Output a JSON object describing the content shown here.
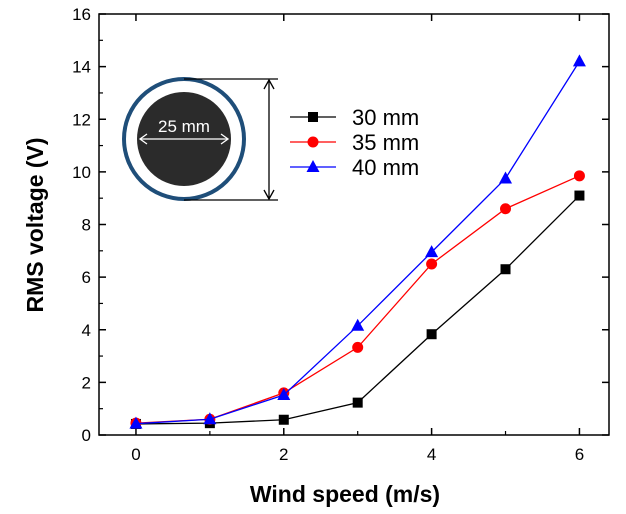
{
  "chart_data": {
    "type": "line",
    "title": "",
    "xlabel": "Wind speed (m/s)",
    "ylabel": "RMS voltage (V)",
    "xlim": [
      -0.5,
      6.4
    ],
    "ylim": [
      0,
      16
    ],
    "x_ticks": [
      0,
      2,
      4,
      6
    ],
    "y_ticks": [
      0,
      2,
      4,
      6,
      8,
      10,
      12,
      14,
      16
    ],
    "x": [
      0,
      1,
      2,
      3,
      4,
      5,
      6
    ],
    "series": [
      {
        "name": "30 mm",
        "color": "#000000",
        "marker": "square",
        "values": [
          0.42,
          0.45,
          0.58,
          1.23,
          3.83,
          6.3,
          9.1
        ]
      },
      {
        "name": "35 mm",
        "color": "#ff0000",
        "marker": "circle",
        "values": [
          0.45,
          0.6,
          1.6,
          3.33,
          6.5,
          8.6,
          9.85
        ]
      },
      {
        "name": "40 mm",
        "color": "#0000ff",
        "marker": "triangle",
        "values": [
          0.43,
          0.6,
          1.52,
          4.15,
          6.95,
          9.75,
          14.2
        ]
      }
    ],
    "legend_position": "top-center",
    "grid": false
  },
  "inset": {
    "label": "25 mm",
    "outer_ring_color": "#1f4e79",
    "core_color": "#2b2b2b"
  }
}
